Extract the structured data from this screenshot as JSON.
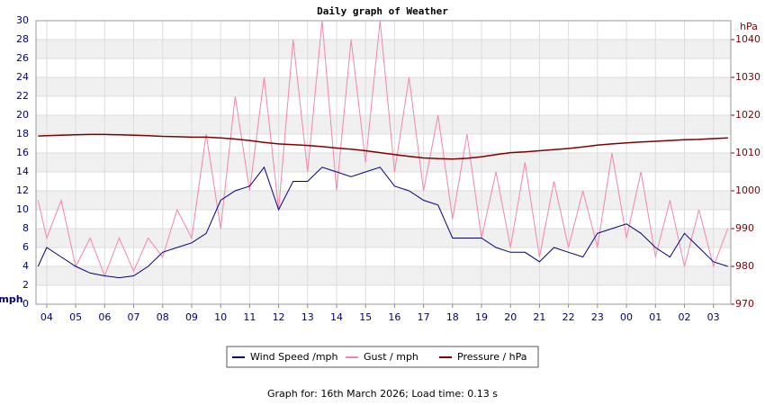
{
  "chart_data": {
    "type": "line",
    "title": "Daily graph of Weather",
    "ylabel": "mph",
    "y2label": "hPa",
    "footer": "Graph for: 16th March 2026; Load time: 0.13 s",
    "grid": true,
    "xlim": [
      -0.37,
      23.6
    ],
    "xticks": [
      {
        "value": 0,
        "label": "04"
      },
      {
        "value": 1,
        "label": "05"
      },
      {
        "value": 2,
        "label": "06"
      },
      {
        "value": 3,
        "label": "07"
      },
      {
        "value": 4,
        "label": "08"
      },
      {
        "value": 5,
        "label": "09"
      },
      {
        "value": 6,
        "label": "10"
      },
      {
        "value": 7,
        "label": "11"
      },
      {
        "value": 8,
        "label": "12"
      },
      {
        "value": 9,
        "label": "13"
      },
      {
        "value": 10,
        "label": "14"
      },
      {
        "value": 11,
        "label": "15"
      },
      {
        "value": 12,
        "label": "16"
      },
      {
        "value": 13,
        "label": "17"
      },
      {
        "value": 14,
        "label": "18"
      },
      {
        "value": 15,
        "label": "19"
      },
      {
        "value": 16,
        "label": "20"
      },
      {
        "value": 17,
        "label": "21"
      },
      {
        "value": 18,
        "label": "22"
      },
      {
        "value": 19,
        "label": "23"
      },
      {
        "value": 20,
        "label": "00"
      },
      {
        "value": 21,
        "label": "01"
      },
      {
        "value": 22,
        "label": "02"
      },
      {
        "value": 23,
        "label": "03"
      }
    ],
    "ylim": [
      0,
      30
    ],
    "yticks": [
      0,
      2,
      4,
      6,
      8,
      10,
      12,
      14,
      16,
      18,
      20,
      22,
      24,
      26,
      28,
      30
    ],
    "y2lim": [
      970,
      1045
    ],
    "y2ticks": [
      970,
      980,
      990,
      1000,
      1010,
      1020,
      1030,
      1040
    ],
    "x": [
      -0.3,
      0,
      0.5,
      1,
      1.5,
      2,
      2.5,
      3,
      3.5,
      4,
      4.5,
      5,
      5.5,
      6,
      6.5,
      7,
      7.5,
      8,
      8.5,
      9,
      9.5,
      10,
      10.5,
      11,
      11.5,
      12,
      12.5,
      13,
      13.5,
      14,
      14.5,
      15,
      15.5,
      16,
      16.5,
      17,
      17.5,
      18,
      18.5,
      19,
      19.5,
      20,
      20.5,
      21,
      21.5,
      22,
      22.5,
      23,
      23.5
    ],
    "series": [
      {
        "name": "Wind Speed /mph",
        "color": "#000080",
        "values": [
          4,
          6,
          5,
          4,
          3.3,
          3,
          2.8,
          3,
          4,
          5.5,
          6,
          6.5,
          7.5,
          11,
          12,
          12.5,
          14.5,
          10,
          13,
          13,
          14.5,
          14,
          13.5,
          14,
          14.5,
          12.5,
          12,
          11,
          10.5,
          7,
          7,
          7,
          6,
          5.5,
          5.5,
          4.5,
          6,
          5.5,
          5,
          7.5,
          8,
          8.5,
          7.5,
          6,
          5,
          7.5,
          6,
          4.5,
          4
        ]
      },
      {
        "name": "Gust / mph",
        "color": "#f585ab",
        "values": [
          11,
          7,
          11,
          4,
          7,
          3,
          7,
          3.5,
          7,
          5,
          10,
          7,
          18,
          8,
          22,
          12,
          24,
          10,
          28,
          14,
          30,
          12,
          28,
          15,
          30,
          14,
          24,
          12,
          20,
          9,
          18,
          7,
          14,
          6,
          15,
          5,
          13,
          6,
          12,
          6,
          16,
          7,
          14,
          5,
          11,
          4,
          10,
          4,
          8
        ]
      },
      {
        "name": "Pressure / hPa",
        "color": "#800000",
        "axis": "y2",
        "values": [
          1014.5,
          1014.6,
          1014.7,
          1014.8,
          1014.9,
          1014.9,
          1014.8,
          1014.7,
          1014.6,
          1014.4,
          1014.3,
          1014.2,
          1014.2,
          1014.0,
          1013.7,
          1013.3,
          1012.8,
          1012.4,
          1012.2,
          1012.0,
          1011.7,
          1011.3,
          1011.0,
          1010.6,
          1010.1,
          1009.6,
          1009.1,
          1008.7,
          1008.5,
          1008.4,
          1008.6,
          1009.0,
          1009.6,
          1010.1,
          1010.3,
          1010.6,
          1010.9,
          1011.2,
          1011.6,
          1012.1,
          1012.4,
          1012.7,
          1012.9,
          1013.1,
          1013.3,
          1013.5,
          1013.6,
          1013.8,
          1014.0
        ]
      }
    ]
  }
}
